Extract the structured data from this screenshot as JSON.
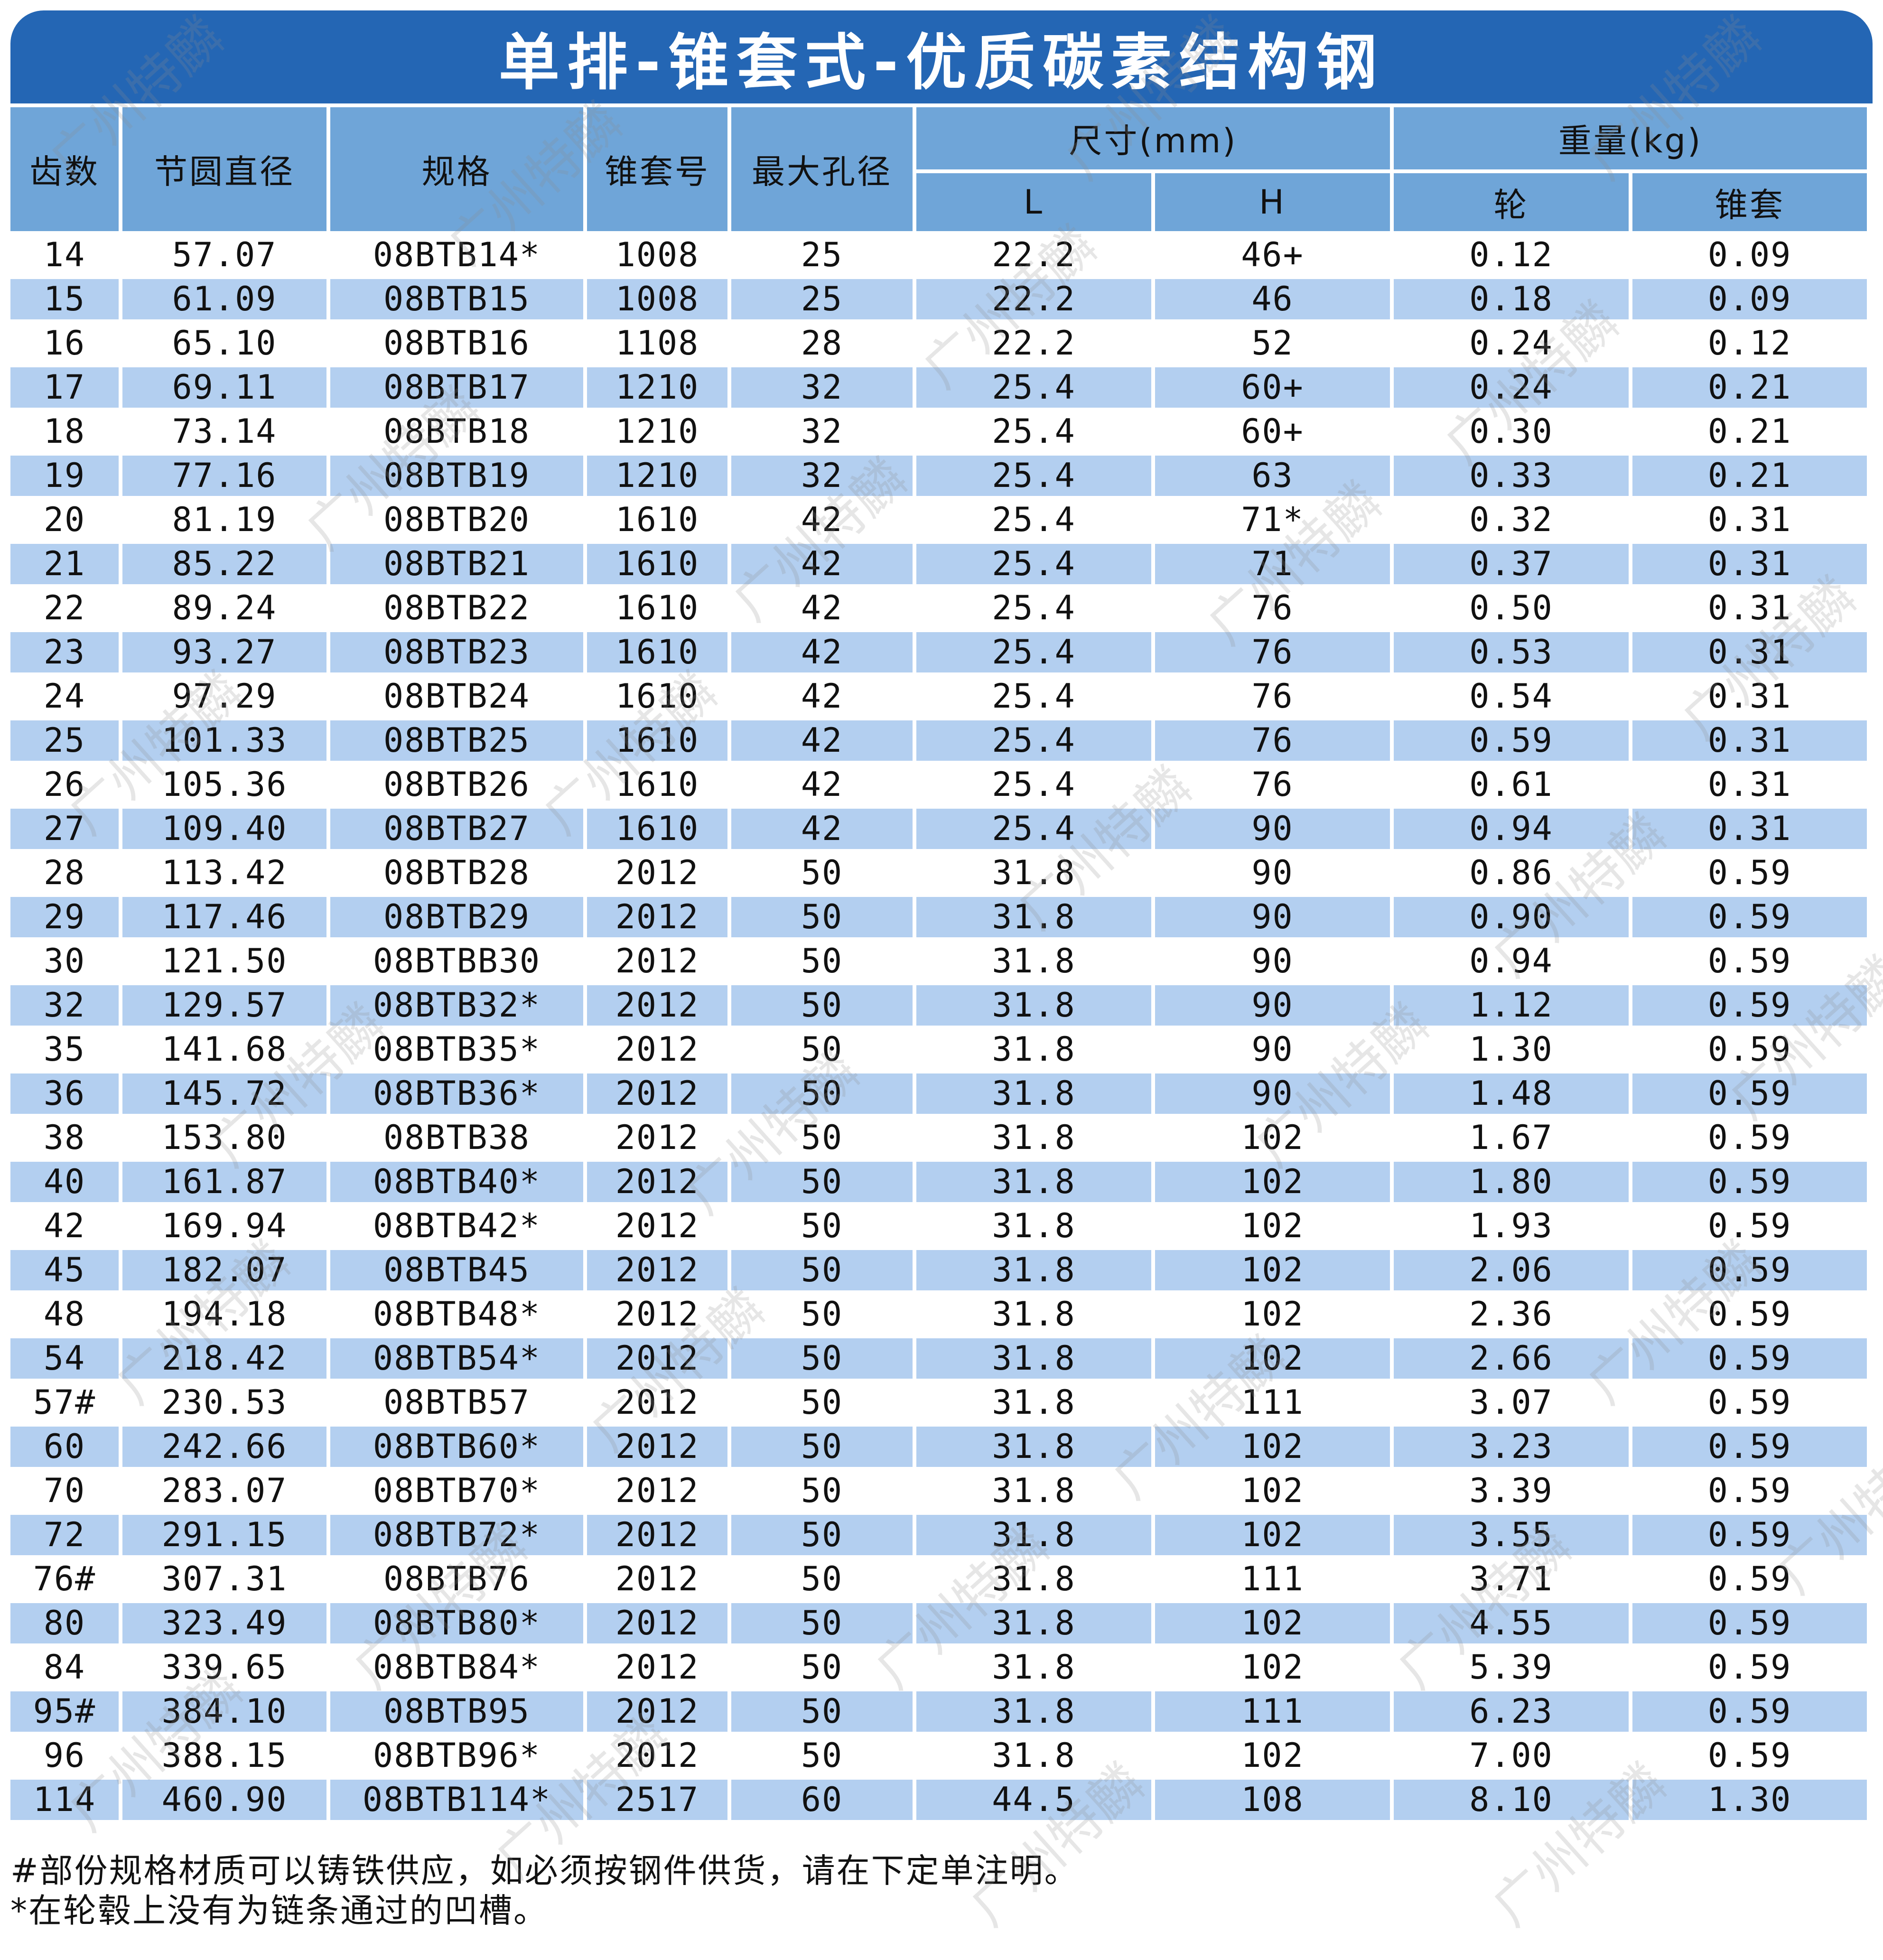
{
  "title": "单排-锥套式-优质碳素结构钢",
  "headers": {
    "teeth": "齿数",
    "pitch_diameter": "节圆直径",
    "spec": "规格",
    "bush_no": "锥套号",
    "max_bore": "最大孔径",
    "dimension": "尺寸(mm)",
    "weight": "重量(kg)",
    "dim_L": "L",
    "dim_H": "H",
    "wt_wheel": "轮",
    "wt_bush": "锥套"
  },
  "rows": [
    [
      "14",
      "57.07",
      "08BTB14*",
      "1008",
      "25",
      "22.2",
      "46+",
      "0.12",
      "0.09"
    ],
    [
      "15",
      "61.09",
      "08BTB15",
      "1008",
      "25",
      "22.2",
      "46",
      "0.18",
      "0.09"
    ],
    [
      "16",
      "65.10",
      "08BTB16",
      "1108",
      "28",
      "22.2",
      "52",
      "0.24",
      "0.12"
    ],
    [
      "17",
      "69.11",
      "08BTB17",
      "1210",
      "32",
      "25.4",
      "60+",
      "0.24",
      "0.21"
    ],
    [
      "18",
      "73.14",
      "08BTB18",
      "1210",
      "32",
      "25.4",
      "60+",
      "0.30",
      "0.21"
    ],
    [
      "19",
      "77.16",
      "08BTB19",
      "1210",
      "32",
      "25.4",
      "63",
      "0.33",
      "0.21"
    ],
    [
      "20",
      "81.19",
      "08BTB20",
      "1610",
      "42",
      "25.4",
      "71*",
      "0.32",
      "0.31"
    ],
    [
      "21",
      "85.22",
      "08BTB21",
      "1610",
      "42",
      "25.4",
      "71",
      "0.37",
      "0.31"
    ],
    [
      "22",
      "89.24",
      "08BTB22",
      "1610",
      "42",
      "25.4",
      "76",
      "0.50",
      "0.31"
    ],
    [
      "23",
      "93.27",
      "08BTB23",
      "1610",
      "42",
      "25.4",
      "76",
      "0.53",
      "0.31"
    ],
    [
      "24",
      "97.29",
      "08BTB24",
      "1610",
      "42",
      "25.4",
      "76",
      "0.54",
      "0.31"
    ],
    [
      "25",
      "101.33",
      "08BTB25",
      "1610",
      "42",
      "25.4",
      "76",
      "0.59",
      "0.31"
    ],
    [
      "26",
      "105.36",
      "08BTB26",
      "1610",
      "42",
      "25.4",
      "76",
      "0.61",
      "0.31"
    ],
    [
      "27",
      "109.40",
      "08BTB27",
      "1610",
      "42",
      "25.4",
      "90",
      "0.94",
      "0.31"
    ],
    [
      "28",
      "113.42",
      "08BTB28",
      "2012",
      "50",
      "31.8",
      "90",
      "0.86",
      "0.59"
    ],
    [
      "29",
      "117.46",
      "08BTB29",
      "2012",
      "50",
      "31.8",
      "90",
      "0.90",
      "0.59"
    ],
    [
      "30",
      "121.50",
      "08BTBB30",
      "2012",
      "50",
      "31.8",
      "90",
      "0.94",
      "0.59"
    ],
    [
      "32",
      "129.57",
      "08BTB32*",
      "2012",
      "50",
      "31.8",
      "90",
      "1.12",
      "0.59"
    ],
    [
      "35",
      "141.68",
      "08BTB35*",
      "2012",
      "50",
      "31.8",
      "90",
      "1.30",
      "0.59"
    ],
    [
      "36",
      "145.72",
      "08BTB36*",
      "2012",
      "50",
      "31.8",
      "90",
      "1.48",
      "0.59"
    ],
    [
      "38",
      "153.80",
      "08BTB38",
      "2012",
      "50",
      "31.8",
      "102",
      "1.67",
      "0.59"
    ],
    [
      "40",
      "161.87",
      "08BTB40*",
      "2012",
      "50",
      "31.8",
      "102",
      "1.80",
      "0.59"
    ],
    [
      "42",
      "169.94",
      "08BTB42*",
      "2012",
      "50",
      "31.8",
      "102",
      "1.93",
      "0.59"
    ],
    [
      "45",
      "182.07",
      "08BTB45",
      "2012",
      "50",
      "31.8",
      "102",
      "2.06",
      "0.59"
    ],
    [
      "48",
      "194.18",
      "08BTB48*",
      "2012",
      "50",
      "31.8",
      "102",
      "2.36",
      "0.59"
    ],
    [
      "54",
      "218.42",
      "08BTB54*",
      "2012",
      "50",
      "31.8",
      "102",
      "2.66",
      "0.59"
    ],
    [
      "57#",
      "230.53",
      "08BTB57",
      "2012",
      "50",
      "31.8",
      "111",
      "3.07",
      "0.59"
    ],
    [
      "60",
      "242.66",
      "08BTB60*",
      "2012",
      "50",
      "31.8",
      "102",
      "3.23",
      "0.59"
    ],
    [
      "70",
      "283.07",
      "08BTB70*",
      "2012",
      "50",
      "31.8",
      "102",
      "3.39",
      "0.59"
    ],
    [
      "72",
      "291.15",
      "08BTB72*",
      "2012",
      "50",
      "31.8",
      "102",
      "3.55",
      "0.59"
    ],
    [
      "76#",
      "307.31",
      "08BTB76",
      "2012",
      "50",
      "31.8",
      "111",
      "3.71",
      "0.59"
    ],
    [
      "80",
      "323.49",
      "08BTB80*",
      "2012",
      "50",
      "31.8",
      "102",
      "4.55",
      "0.59"
    ],
    [
      "84",
      "339.65",
      "08BTB84*",
      "2012",
      "50",
      "31.8",
      "102",
      "5.39",
      "0.59"
    ],
    [
      "95#",
      "384.10",
      "08BTB95",
      "2012",
      "50",
      "31.8",
      "111",
      "6.23",
      "0.59"
    ],
    [
      "96",
      "388.15",
      "08BTB96*",
      "2012",
      "50",
      "31.8",
      "102",
      "7.00",
      "0.59"
    ],
    [
      "114",
      "460.90",
      "08BTB114*",
      "2517",
      "60",
      "44.5",
      "108",
      "8.10",
      "1.30"
    ]
  ],
  "notes": [
    "#部份规格材质可以铸铁供应，如必须按钢件供货，请在下定单注明。",
    "*在轮毂上没有为链条通过的凹槽。"
  ],
  "watermark": "广州特麟",
  "colors": {
    "title_bg": "#2466b4",
    "header_bg": "#6fa5d8",
    "row_alt_bg": "#b3cff0"
  }
}
